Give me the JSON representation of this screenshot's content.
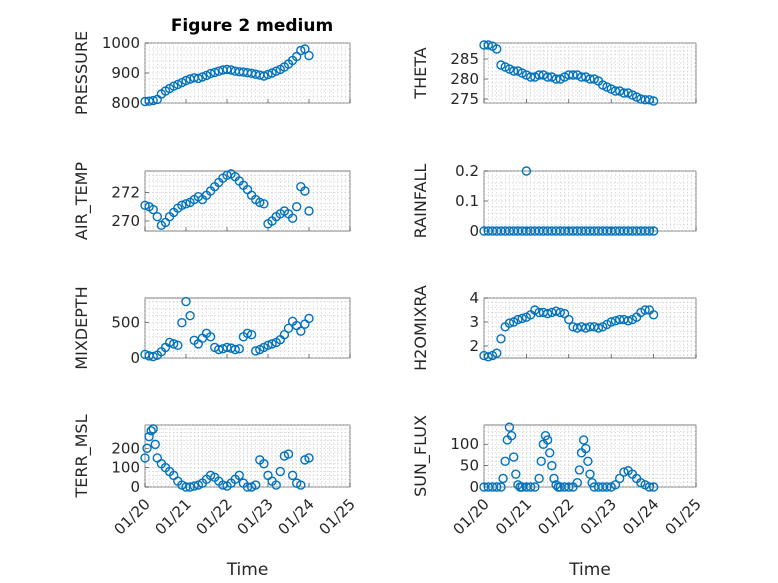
{
  "figure": {
    "title": "Figure 2 medium"
  },
  "style": {
    "marker_color": "#0072BD",
    "axis_color": "#262626",
    "grid_color": "#bdbdbd"
  },
  "chart_data": [
    {
      "type": "scatter",
      "name": "pressure-panel",
      "ylabel": "PRESSURE",
      "xlabel": "",
      "title": "Figure 2 medium",
      "ylim": [
        800,
        1000
      ],
      "yticks": [
        800,
        900,
        1000
      ],
      "xlim": [
        0,
        5
      ],
      "xticks": [
        "01/20",
        "01/21",
        "01/22",
        "01/23",
        "01/24",
        "01/25"
      ],
      "grid": true,
      "minor_grid": true,
      "x": [
        0.0,
        0.1,
        0.2,
        0.3,
        0.4,
        0.5,
        0.6,
        0.7,
        0.8,
        0.9,
        1.0,
        1.1,
        1.2,
        1.3,
        1.4,
        1.5,
        1.6,
        1.7,
        1.8,
        1.9,
        2.0,
        2.1,
        2.2,
        2.3,
        2.4,
        2.5,
        2.6,
        2.7,
        2.8,
        2.9,
        3.0,
        3.1,
        3.2,
        3.3,
        3.4,
        3.5,
        3.6,
        3.7,
        3.8,
        3.9,
        4.0
      ],
      "y": [
        805,
        806,
        808,
        812,
        830,
        840,
        848,
        856,
        862,
        868,
        875,
        880,
        884,
        882,
        887,
        892,
        898,
        902,
        906,
        910,
        912,
        910,
        906,
        904,
        903,
        901,
        899,
        896,
        893,
        890,
        895,
        900,
        906,
        912,
        920,
        930,
        942,
        955,
        975,
        980,
        958
      ]
    },
    {
      "type": "scatter",
      "name": "theta-panel",
      "ylabel": "THETA",
      "xlabel": "",
      "title": "",
      "ylim": [
        274,
        289
      ],
      "yticks": [
        275,
        280,
        285
      ],
      "xlim": [
        0,
        5
      ],
      "xticks": [
        "01/20",
        "01/21",
        "01/22",
        "01/23",
        "01/24",
        "01/25"
      ],
      "grid": true,
      "minor_grid": true,
      "x": [
        0.0,
        0.1,
        0.2,
        0.3,
        0.4,
        0.5,
        0.6,
        0.7,
        0.8,
        0.9,
        1.0,
        1.1,
        1.2,
        1.3,
        1.4,
        1.5,
        1.6,
        1.7,
        1.8,
        1.9,
        2.0,
        2.1,
        2.2,
        2.3,
        2.4,
        2.5,
        2.6,
        2.7,
        2.8,
        2.9,
        3.0,
        3.1,
        3.2,
        3.3,
        3.4,
        3.5,
        3.6,
        3.7,
        3.8,
        3.9,
        4.0
      ],
      "y": [
        288.5,
        288.5,
        288.2,
        287.5,
        283.5,
        283.0,
        282.5,
        282.0,
        282.0,
        281.5,
        281.0,
        280.5,
        280.5,
        281.0,
        281.0,
        280.5,
        280.5,
        280.0,
        280.0,
        280.5,
        281.0,
        281.0,
        281.0,
        280.5,
        280.5,
        280.0,
        280.0,
        279.5,
        278.5,
        278.0,
        277.5,
        277.0,
        277.0,
        276.5,
        276.5,
        276.0,
        275.5,
        275.0,
        274.8,
        274.8,
        274.5
      ]
    },
    {
      "type": "scatter",
      "name": "air-temp-panel",
      "ylabel": "AIR_TEMP",
      "xlabel": "",
      "title": "",
      "ylim": [
        269.3,
        273.5
      ],
      "yticks": [
        270,
        272
      ],
      "xlim": [
        0,
        5
      ],
      "xticks": [
        "01/20",
        "01/21",
        "01/22",
        "01/23",
        "01/24",
        "01/25"
      ],
      "grid": true,
      "minor_grid": true,
      "x": [
        0.0,
        0.1,
        0.2,
        0.3,
        0.4,
        0.5,
        0.6,
        0.7,
        0.8,
        0.9,
        1.0,
        1.1,
        1.2,
        1.3,
        1.4,
        1.5,
        1.6,
        1.7,
        1.8,
        1.9,
        2.0,
        2.1,
        2.2,
        2.3,
        2.4,
        2.5,
        2.6,
        2.7,
        2.8,
        2.9,
        3.0,
        3.1,
        3.2,
        3.3,
        3.4,
        3.5,
        3.6,
        3.7,
        3.8,
        3.9,
        4.0
      ],
      "y": [
        271.1,
        271.0,
        270.8,
        270.3,
        269.7,
        269.9,
        270.3,
        270.6,
        270.9,
        271.1,
        271.2,
        271.3,
        271.5,
        271.7,
        271.5,
        271.8,
        272.1,
        272.4,
        272.7,
        273.0,
        273.2,
        273.3,
        273.1,
        272.8,
        272.5,
        272.2,
        271.8,
        271.5,
        271.3,
        271.2,
        269.8,
        270.0,
        270.3,
        270.5,
        270.7,
        270.5,
        270.2,
        271.0,
        272.4,
        272.1,
        270.7
      ]
    },
    {
      "type": "scatter",
      "name": "rainfall-panel",
      "ylabel": "RAINFALL",
      "xlabel": "",
      "title": "",
      "ylim": [
        0,
        0.2
      ],
      "yticks": [
        0,
        0.1,
        0.2
      ],
      "xlim": [
        0,
        5
      ],
      "xticks": [
        "01/20",
        "01/21",
        "01/22",
        "01/23",
        "01/24",
        "01/25"
      ],
      "grid": true,
      "minor_grid": true,
      "x": [
        0.0,
        0.1,
        0.2,
        0.3,
        0.4,
        0.5,
        0.6,
        0.7,
        0.8,
        0.9,
        1.0,
        1.1,
        1.2,
        1.3,
        1.4,
        1.5,
        1.6,
        1.7,
        1.8,
        1.9,
        2.0,
        2.1,
        2.2,
        2.3,
        2.4,
        2.5,
        2.6,
        2.7,
        2.8,
        2.9,
        3.0,
        3.1,
        3.2,
        3.3,
        3.4,
        3.5,
        3.6,
        3.7,
        3.8,
        3.9,
        4.0,
        1.0
      ],
      "y": [
        0,
        0,
        0,
        0,
        0,
        0,
        0,
        0,
        0,
        0,
        0,
        0,
        0,
        0,
        0,
        0,
        0,
        0,
        0,
        0,
        0,
        0,
        0,
        0,
        0,
        0,
        0,
        0,
        0,
        0,
        0,
        0,
        0,
        0,
        0,
        0,
        0,
        0,
        0,
        0,
        0,
        0.2
      ]
    },
    {
      "type": "scatter",
      "name": "mixdepth-panel",
      "ylabel": "MIXDEPTH",
      "xlabel": "",
      "title": "",
      "ylim": [
        0,
        850
      ],
      "yticks": [
        0,
        500
      ],
      "xlim": [
        0,
        5
      ],
      "xticks": [
        "01/20",
        "01/21",
        "01/22",
        "01/23",
        "01/24",
        "01/25"
      ],
      "grid": true,
      "minor_grid": true,
      "x": [
        0.0,
        0.1,
        0.2,
        0.3,
        0.4,
        0.5,
        0.6,
        0.7,
        0.8,
        0.9,
        1.0,
        1.1,
        1.2,
        1.3,
        1.4,
        1.5,
        1.6,
        1.7,
        1.8,
        1.9,
        2.0,
        2.1,
        2.2,
        2.3,
        2.4,
        2.5,
        2.6,
        2.7,
        2.8,
        2.9,
        3.0,
        3.1,
        3.2,
        3.3,
        3.4,
        3.5,
        3.6,
        3.7,
        3.8,
        3.9,
        4.0
      ],
      "y": [
        50,
        30,
        20,
        40,
        90,
        150,
        220,
        200,
        180,
        500,
        800,
        600,
        250,
        200,
        280,
        350,
        300,
        150,
        120,
        130,
        150,
        140,
        120,
        130,
        300,
        350,
        330,
        100,
        120,
        150,
        180,
        200,
        220,
        260,
        330,
        420,
        520,
        460,
        380,
        480,
        560
      ]
    },
    {
      "type": "scatter",
      "name": "h2o-mixing-ratio-panel",
      "ylabel": "H2OMIXRA",
      "xlabel": "",
      "title": "",
      "ylim": [
        1.5,
        4
      ],
      "yticks": [
        2,
        3,
        4
      ],
      "xlim": [
        0,
        5
      ],
      "xticks": [
        "01/20",
        "01/21",
        "01/22",
        "01/23",
        "01/24",
        "01/25"
      ],
      "grid": true,
      "minor_grid": true,
      "x": [
        0.0,
        0.1,
        0.2,
        0.3,
        0.4,
        0.5,
        0.6,
        0.7,
        0.8,
        0.9,
        1.0,
        1.1,
        1.2,
        1.3,
        1.4,
        1.5,
        1.6,
        1.7,
        1.8,
        1.9,
        2.0,
        2.1,
        2.2,
        2.3,
        2.4,
        2.5,
        2.6,
        2.7,
        2.8,
        2.9,
        3.0,
        3.1,
        3.2,
        3.3,
        3.4,
        3.5,
        3.6,
        3.7,
        3.8,
        3.9,
        4.0
      ],
      "y": [
        1.6,
        1.55,
        1.6,
        1.7,
        2.3,
        2.8,
        2.95,
        3.0,
        3.1,
        3.15,
        3.2,
        3.3,
        3.5,
        3.4,
        3.4,
        3.35,
        3.4,
        3.45,
        3.4,
        3.35,
        3.1,
        2.8,
        2.75,
        2.8,
        2.75,
        2.8,
        2.8,
        2.75,
        2.8,
        2.9,
        3.0,
        3.05,
        3.1,
        3.1,
        3.05,
        3.1,
        3.2,
        3.4,
        3.5,
        3.5,
        3.3
      ]
    },
    {
      "type": "scatter",
      "name": "terrain-msl-panel",
      "ylabel": "TERR_MSL",
      "xlabel": "Time",
      "title": "",
      "ylim": [
        0,
        320
      ],
      "yticks": [
        0,
        100,
        200
      ],
      "xlim": [
        0,
        5
      ],
      "xticks": [
        "01/20",
        "01/21",
        "01/22",
        "01/23",
        "01/24",
        "01/25"
      ],
      "grid": true,
      "minor_grid": true,
      "x": [
        0.0,
        0.05,
        0.1,
        0.15,
        0.2,
        0.25,
        0.3,
        0.4,
        0.5,
        0.6,
        0.7,
        0.8,
        0.9,
        1.0,
        1.1,
        1.2,
        1.3,
        1.4,
        1.5,
        1.6,
        1.7,
        1.8,
        1.9,
        2.0,
        2.1,
        2.2,
        2.3,
        2.4,
        2.5,
        2.6,
        2.7,
        2.8,
        2.9,
        3.0,
        3.1,
        3.2,
        3.3,
        3.4,
        3.5,
        3.6,
        3.7,
        3.8,
        3.9,
        4.0
      ],
      "y": [
        150,
        200,
        260,
        290,
        300,
        220,
        150,
        120,
        100,
        80,
        60,
        30,
        10,
        0,
        0,
        5,
        10,
        20,
        40,
        60,
        50,
        30,
        10,
        5,
        20,
        40,
        60,
        20,
        0,
        0,
        10,
        140,
        120,
        60,
        30,
        10,
        80,
        160,
        170,
        60,
        20,
        10,
        140,
        150
      ]
    },
    {
      "type": "scatter",
      "name": "sun-flux-panel",
      "ylabel": "SUN_FLUX",
      "xlabel": "Time",
      "title": "",
      "ylim": [
        0,
        145
      ],
      "yticks": [
        0,
        50,
        100
      ],
      "xlim": [
        0,
        5
      ],
      "xticks": [
        "01/20",
        "01/21",
        "01/22",
        "01/23",
        "01/24",
        "01/25"
      ],
      "grid": true,
      "minor_grid": true,
      "x": [
        0.0,
        0.1,
        0.2,
        0.3,
        0.4,
        0.45,
        0.5,
        0.55,
        0.6,
        0.65,
        0.7,
        0.75,
        0.8,
        0.85,
        0.9,
        1.0,
        1.1,
        1.2,
        1.3,
        1.35,
        1.4,
        1.45,
        1.5,
        1.55,
        1.6,
        1.65,
        1.7,
        1.75,
        1.8,
        1.9,
        2.0,
        2.1,
        2.2,
        2.25,
        2.3,
        2.35,
        2.4,
        2.45,
        2.5,
        2.55,
        2.6,
        2.7,
        2.8,
        2.9,
        3.0,
        3.1,
        3.2,
        3.3,
        3.4,
        3.5,
        3.6,
        3.7,
        3.8,
        3.9,
        4.0
      ],
      "y": [
        0,
        0,
        0,
        0,
        0,
        20,
        60,
        110,
        140,
        120,
        70,
        30,
        5,
        0,
        0,
        0,
        0,
        0,
        20,
        60,
        100,
        120,
        110,
        80,
        50,
        20,
        5,
        0,
        0,
        0,
        0,
        0,
        10,
        40,
        80,
        110,
        90,
        60,
        30,
        10,
        0,
        0,
        0,
        0,
        0,
        5,
        20,
        35,
        38,
        30,
        20,
        10,
        5,
        0,
        0
      ]
    }
  ]
}
